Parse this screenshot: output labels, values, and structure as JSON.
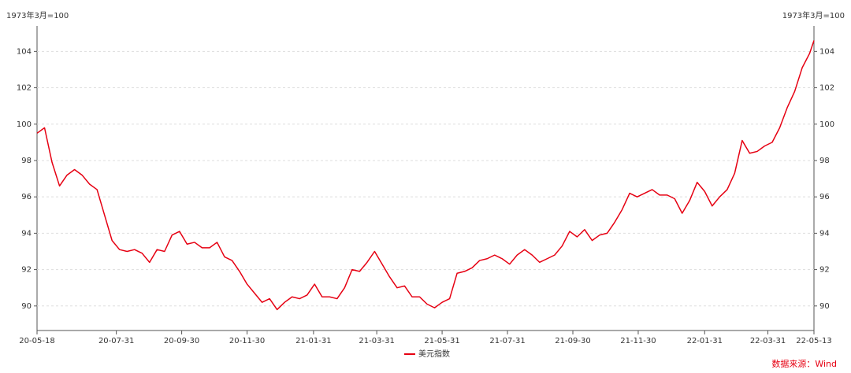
{
  "chart_data": {
    "type": "line",
    "y_label": "1973年3月=100",
    "y2_label": "1973年3月=100",
    "source": "数据来源：Wind",
    "x": [
      "20-05-18",
      "20-05-25",
      "20-06-01",
      "20-06-08",
      "20-06-15",
      "20-06-22",
      "20-06-29",
      "20-07-06",
      "20-07-13",
      "20-07-20",
      "20-07-27",
      "20-08-03",
      "20-08-10",
      "20-08-17",
      "20-08-24",
      "20-08-31",
      "20-09-07",
      "20-09-14",
      "20-09-21",
      "20-09-28",
      "20-10-05",
      "20-10-12",
      "20-10-19",
      "20-10-26",
      "20-11-02",
      "20-11-09",
      "20-11-16",
      "20-11-23",
      "20-11-30",
      "20-12-07",
      "20-12-14",
      "20-12-21",
      "20-12-28",
      "21-01-04",
      "21-01-11",
      "21-01-18",
      "21-01-25",
      "21-02-01",
      "21-02-08",
      "21-02-15",
      "21-02-22",
      "21-03-01",
      "21-03-08",
      "21-03-15",
      "21-03-22",
      "21-03-29",
      "21-04-05",
      "21-04-12",
      "21-04-19",
      "21-04-26",
      "21-05-03",
      "21-05-10",
      "21-05-17",
      "21-05-24",
      "21-05-31",
      "21-06-07",
      "21-06-14",
      "21-06-21",
      "21-06-28",
      "21-07-05",
      "21-07-12",
      "21-07-19",
      "21-07-26",
      "21-08-02",
      "21-08-09",
      "21-08-16",
      "21-08-23",
      "21-08-30",
      "21-09-06",
      "21-09-13",
      "21-09-20",
      "21-09-27",
      "21-10-04",
      "21-10-11",
      "21-10-18",
      "21-10-25",
      "21-11-01",
      "21-11-08",
      "21-11-15",
      "21-11-22",
      "21-11-29",
      "21-12-06",
      "21-12-13",
      "21-12-20",
      "21-12-27",
      "22-01-03",
      "22-01-10",
      "22-01-17",
      "22-01-24",
      "22-01-31",
      "22-02-07",
      "22-02-14",
      "22-02-21",
      "22-02-28",
      "22-03-07",
      "22-03-14",
      "22-03-21",
      "22-03-28",
      "22-04-04",
      "22-04-11",
      "22-04-18",
      "22-04-25",
      "22-05-02",
      "22-05-09",
      "22-05-13"
    ],
    "series": [
      {
        "name": "美元指数",
        "color": "#e60012",
        "values": [
          99.5,
          99.8,
          97.9,
          96.6,
          97.2,
          97.5,
          97.2,
          96.7,
          96.4,
          95.0,
          93.6,
          93.1,
          93.0,
          93.1,
          92.9,
          92.4,
          93.1,
          93.0,
          93.9,
          94.1,
          93.4,
          93.5,
          93.2,
          93.2,
          93.5,
          92.7,
          92.5,
          91.9,
          91.2,
          90.7,
          90.2,
          90.4,
          89.8,
          90.2,
          90.5,
          90.4,
          90.6,
          91.2,
          90.5,
          90.5,
          90.4,
          91.0,
          92.0,
          91.9,
          92.4,
          93.0,
          92.3,
          91.6,
          91.0,
          91.1,
          90.5,
          90.5,
          90.1,
          89.9,
          90.2,
          90.4,
          91.8,
          91.9,
          92.1,
          92.5,
          92.6,
          92.8,
          92.6,
          92.3,
          92.8,
          93.1,
          92.8,
          92.4,
          92.6,
          92.8,
          93.3,
          94.1,
          93.8,
          94.2,
          93.6,
          93.9,
          94.0,
          94.6,
          95.3,
          96.2,
          96.0,
          96.2,
          96.4,
          96.1,
          96.1,
          95.9,
          95.1,
          95.8,
          96.8,
          96.3,
          95.5,
          96.0,
          96.4,
          97.3,
          99.1,
          98.4,
          98.5,
          98.8,
          99.0,
          99.8,
          100.9,
          101.8,
          103.1,
          103.9,
          104.6
        ]
      }
    ],
    "xlim": [
      "20-05-18",
      "22-05-13"
    ],
    "xticks": [
      "20-05-18",
      "20-07-31",
      "20-09-30",
      "20-11-30",
      "21-01-31",
      "21-03-31",
      "21-05-31",
      "21-07-31",
      "21-09-30",
      "21-11-30",
      "22-01-31",
      "22-03-31",
      "22-05-13"
    ],
    "ylim": [
      88.65,
      105.4
    ],
    "yticks": [
      90,
      92,
      94,
      96,
      98,
      100,
      102,
      104
    ],
    "y2lim": [
      88.65,
      105.4
    ],
    "y2ticks": [
      90,
      92,
      94,
      96,
      98,
      100,
      102,
      104
    ],
    "grid": true
  }
}
